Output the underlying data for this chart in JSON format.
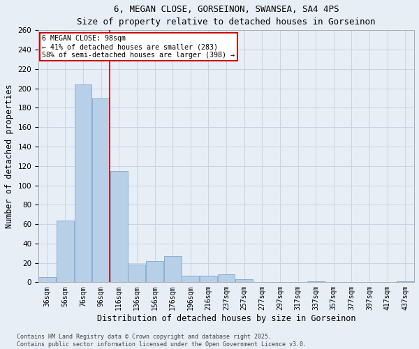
{
  "title_line1": "6, MEGAN CLOSE, GORSEINON, SWANSEA, SA4 4PS",
  "title_line2": "Size of property relative to detached houses in Gorseinon",
  "xlabel": "Distribution of detached houses by size in Gorseinon",
  "ylabel": "Number of detached properties",
  "bar_categories": [
    "36sqm",
    "56sqm",
    "76sqm",
    "96sqm",
    "116sqm",
    "136sqm",
    "156sqm",
    "176sqm",
    "196sqm",
    "216sqm",
    "237sqm",
    "257sqm",
    "277sqm",
    "297sqm",
    "317sqm",
    "337sqm",
    "357sqm",
    "377sqm",
    "397sqm",
    "417sqm",
    "437sqm"
  ],
  "bar_values": [
    5,
    64,
    204,
    190,
    115,
    18,
    22,
    27,
    7,
    7,
    8,
    3,
    0,
    0,
    0,
    1,
    0,
    0,
    0,
    0,
    1
  ],
  "bar_color": "#b8cfe8",
  "bar_edge_color": "#7aaad0",
  "grid_color": "#c8d4e4",
  "background_color": "#e8eef6",
  "annotation_text": "6 MEGAN CLOSE: 98sqm\n← 41% of detached houses are smaller (283)\n58% of semi-detached houses are larger (398) →",
  "annotation_box_facecolor": "#ffffff",
  "annotation_box_edgecolor": "#cc0000",
  "marker_bar_index": 3,
  "marker_line_color": "#cc0000",
  "ylim": [
    0,
    260
  ],
  "yticks": [
    0,
    20,
    40,
    60,
    80,
    100,
    120,
    140,
    160,
    180,
    200,
    220,
    240,
    260
  ],
  "footer_line1": "Contains HM Land Registry data © Crown copyright and database right 2025.",
  "footer_line2": "Contains public sector information licensed under the Open Government Licence v3.0."
}
